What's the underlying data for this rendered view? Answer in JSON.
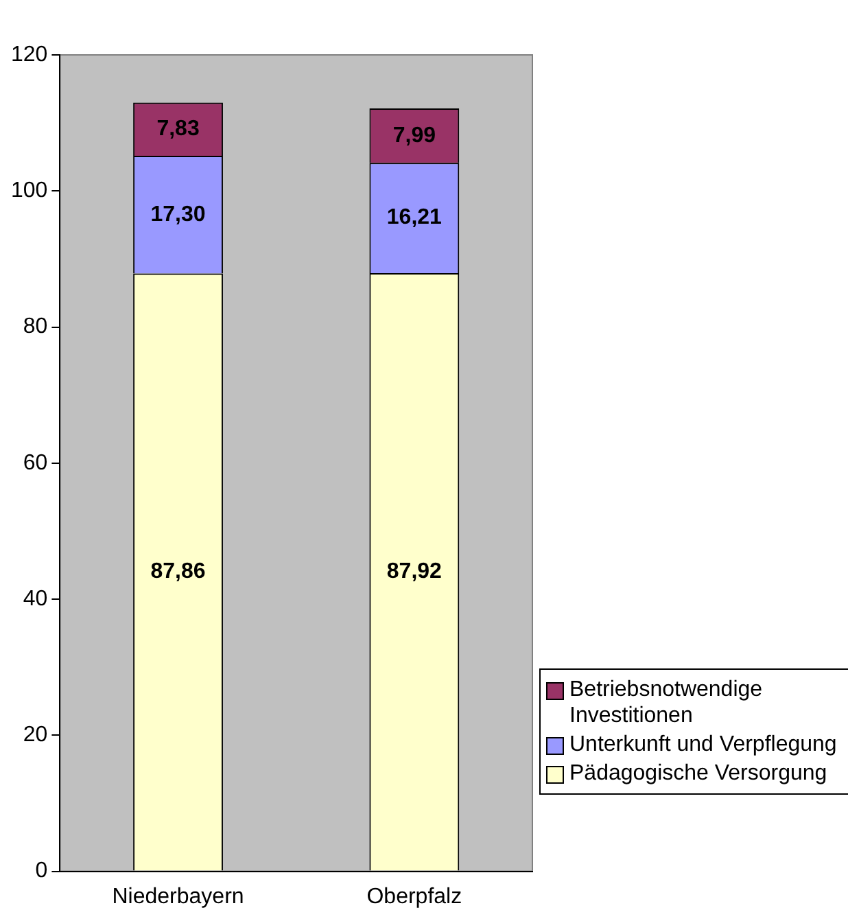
{
  "chart_data": {
    "type": "bar",
    "stacked": true,
    "categories": [
      "Niederbayern",
      "Oberpfalz"
    ],
    "series": [
      {
        "name": "Pädagogische Versorgung",
        "color": "#ffffcc",
        "values": [
          87.86,
          87.92
        ],
        "value_labels": [
          "87,86",
          "87,92"
        ]
      },
      {
        "name": "Unterkunft und Verpflegung",
        "color": "#9999ff",
        "values": [
          17.3,
          16.21
        ],
        "value_labels": [
          "17,30",
          "16,21"
        ]
      },
      {
        "name": "Betriebsnotwendige Investitionen",
        "color": "#993366",
        "values": [
          7.83,
          7.99
        ],
        "value_labels": [
          "7,83",
          "7,99"
        ]
      }
    ],
    "ylim": [
      0,
      120
    ],
    "yticks": [
      0,
      20,
      40,
      60,
      80,
      100,
      120
    ],
    "grid": false,
    "legend": "right"
  }
}
